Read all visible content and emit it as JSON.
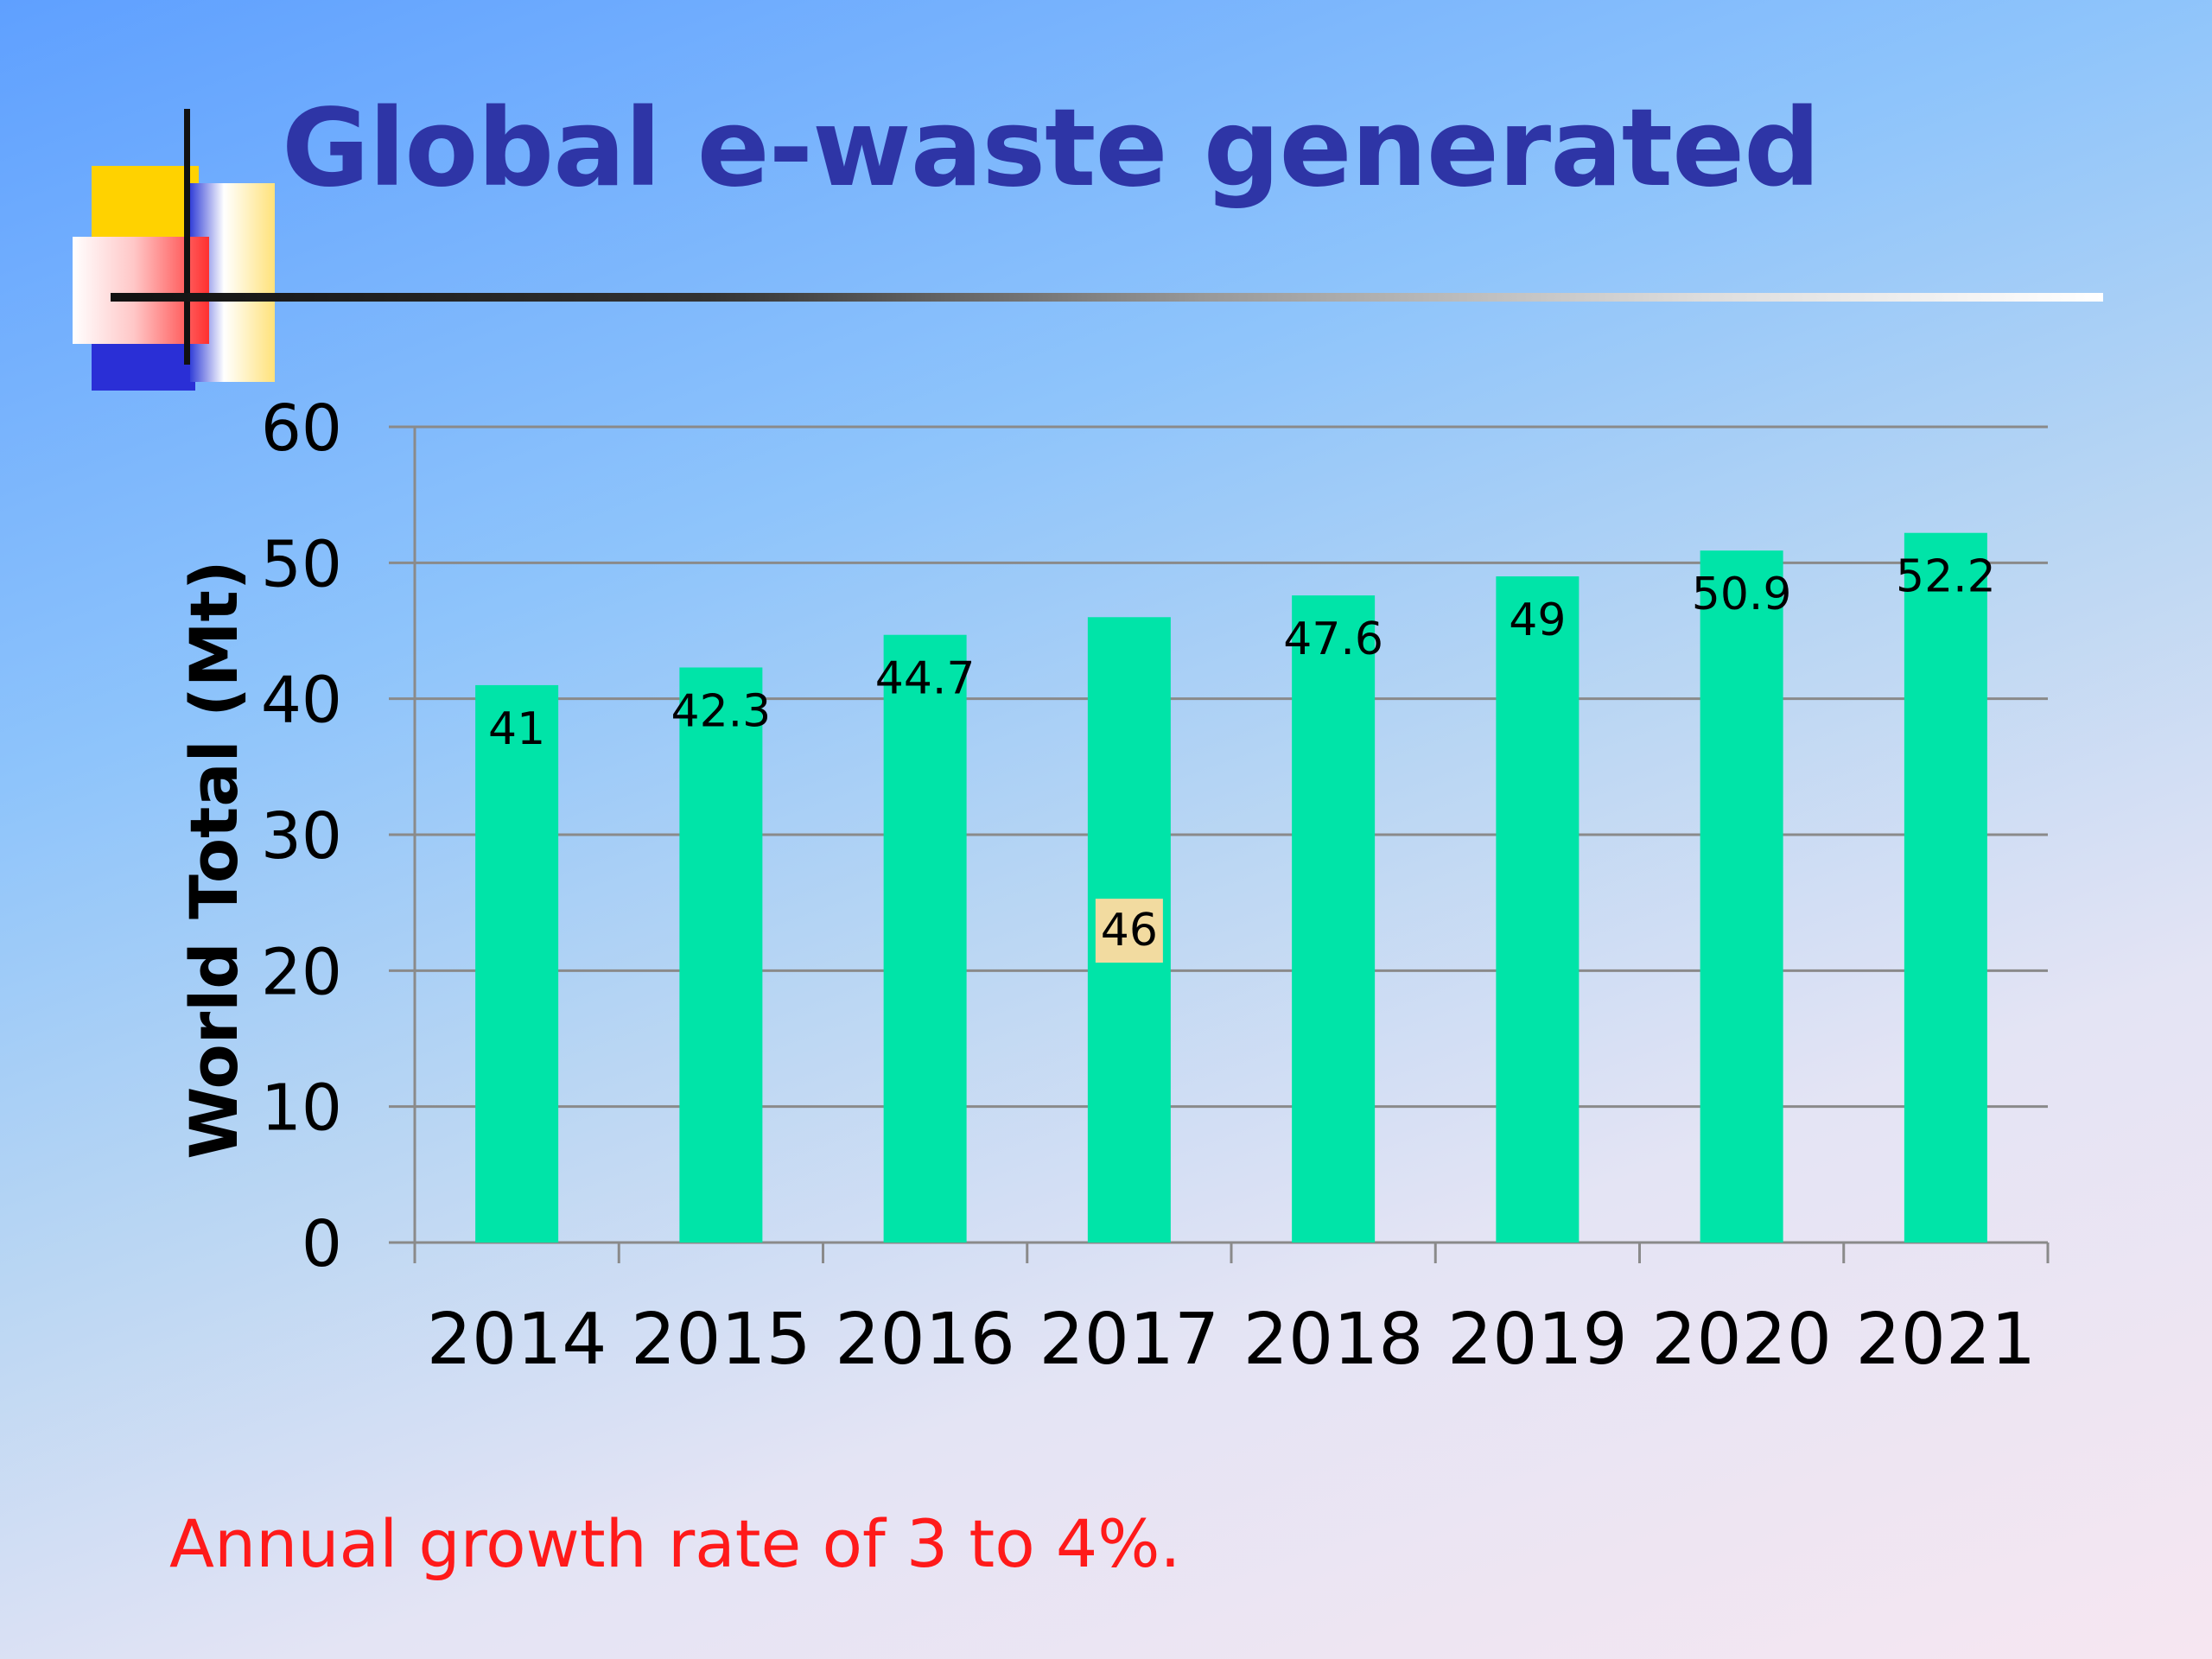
{
  "slide": {
    "title": "Global e-waste generated",
    "note": "Annual growth rate of 3 to 4%."
  },
  "colors": {
    "bar": "#00e4a8",
    "title": "#2e35a6",
    "note": "#ff1a1a",
    "highlight_label_bg": "#f2dba0"
  },
  "chart_data": {
    "type": "bar",
    "categories": [
      "2014",
      "2015",
      "2016",
      "2017",
      "2018",
      "2019",
      "2020",
      "2021"
    ],
    "values": [
      41,
      42.3,
      44.7,
      46,
      47.6,
      49,
      50.9,
      52.2
    ],
    "data_labels": [
      "41",
      "42.3",
      "44.7",
      "46",
      "47.6",
      "49",
      "50.9",
      "52.2"
    ],
    "highlighted_label_index": 3,
    "title": "",
    "xlabel": "",
    "ylabel": "World Total (Mt)",
    "ylim": [
      0,
      60
    ],
    "yticks": [
      0,
      10,
      20,
      30,
      40,
      50,
      60
    ],
    "grid": true,
    "legend": "none"
  }
}
